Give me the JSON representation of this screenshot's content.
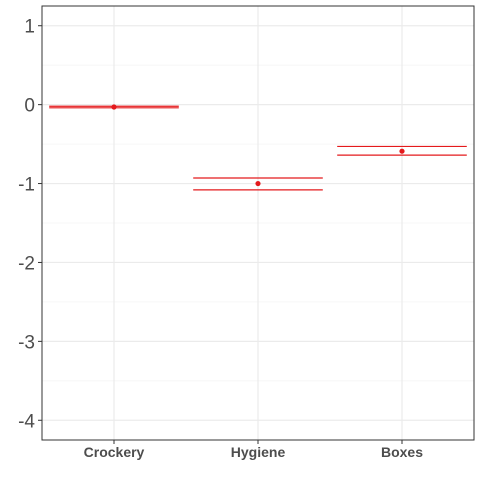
{
  "chart_data": {
    "type": "scatter",
    "title": "",
    "xlabel": "",
    "ylabel": "",
    "categories": [
      "Crockery",
      "Hygiene",
      "Boxes"
    ],
    "series": [
      {
        "points": [
          {
            "category": "Crockery",
            "y": -0.03,
            "lower": -0.04,
            "upper": -0.02
          },
          {
            "category": "Hygiene",
            "y": -1.0,
            "lower": -1.08,
            "upper": -0.93
          },
          {
            "category": "Boxes",
            "y": -0.59,
            "lower": -0.64,
            "upper": -0.53
          }
        ],
        "color": "#e41a1c"
      }
    ],
    "ylim": [
      -4.25,
      1.25
    ],
    "yticks": [
      1,
      0,
      -1,
      -2,
      -3,
      -4
    ],
    "ytick_labels": [
      "1",
      "0",
      "-1",
      "-2",
      "-3",
      "-4"
    ],
    "grid": true,
    "legend": "none"
  },
  "colors": {
    "panel_border": "#333333",
    "grid_major": "#ebebeb",
    "grid_minor": "#f5f5f5",
    "tick_text": "#4d4d4d",
    "series": "#e41a1c"
  }
}
